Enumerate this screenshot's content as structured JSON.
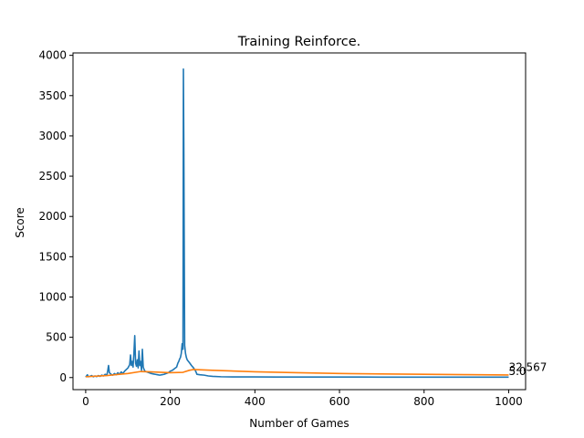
{
  "chart_data": {
    "type": "line",
    "title": "Training Reinforce.",
    "xlabel": "Number of Games",
    "ylabel": "Score",
    "xlim": [
      -30,
      1040
    ],
    "ylim": [
      -150,
      4030
    ],
    "xticks": [
      0,
      200,
      400,
      600,
      800,
      1000
    ],
    "yticks": [
      0,
      500,
      1000,
      1500,
      2000,
      2500,
      3000,
      3500,
      4000
    ],
    "grid": false,
    "series": [
      {
        "color": "#1f77b4",
        "points": [
          [
            0,
            5
          ],
          [
            4,
            35
          ],
          [
            6,
            10
          ],
          [
            10,
            15
          ],
          [
            14,
            25
          ],
          [
            18,
            10
          ],
          [
            22,
            20
          ],
          [
            26,
            12
          ],
          [
            30,
            25
          ],
          [
            34,
            15
          ],
          [
            38,
            30
          ],
          [
            42,
            20
          ],
          [
            46,
            40
          ],
          [
            50,
            30
          ],
          [
            52,
            80
          ],
          [
            54,
            150
          ],
          [
            56,
            60
          ],
          [
            60,
            40
          ],
          [
            64,
            30
          ],
          [
            68,
            50
          ],
          [
            72,
            35
          ],
          [
            76,
            60
          ],
          [
            80,
            40
          ],
          [
            84,
            70
          ],
          [
            88,
            50
          ],
          [
            92,
            80
          ],
          [
            96,
            100
          ],
          [
            100,
            120
          ],
          [
            104,
            160
          ],
          [
            106,
            280
          ],
          [
            108,
            150
          ],
          [
            110,
            200
          ],
          [
            112,
            130
          ],
          [
            114,
            300
          ],
          [
            116,
            520
          ],
          [
            118,
            180
          ],
          [
            120,
            140
          ],
          [
            122,
            220
          ],
          [
            124,
            120
          ],
          [
            126,
            330
          ],
          [
            128,
            150
          ],
          [
            130,
            200
          ],
          [
            132,
            90
          ],
          [
            134,
            350
          ],
          [
            136,
            130
          ],
          [
            138,
            100
          ],
          [
            140,
            80
          ],
          [
            145,
            70
          ],
          [
            150,
            60
          ],
          [
            155,
            50
          ],
          [
            160,
            45
          ],
          [
            165,
            40
          ],
          [
            170,
            35
          ],
          [
            175,
            30
          ],
          [
            180,
            35
          ],
          [
            185,
            40
          ],
          [
            190,
            50
          ],
          [
            195,
            60
          ],
          [
            200,
            80
          ],
          [
            205,
            90
          ],
          [
            210,
            110
          ],
          [
            215,
            130
          ],
          [
            218,
            180
          ],
          [
            220,
            200
          ],
          [
            222,
            230
          ],
          [
            224,
            250
          ],
          [
            226,
            300
          ],
          [
            228,
            420
          ],
          [
            230,
            350
          ],
          [
            231,
            3830
          ],
          [
            232,
            2900
          ],
          [
            234,
            400
          ],
          [
            236,
            300
          ],
          [
            238,
            250
          ],
          [
            240,
            220
          ],
          [
            243,
            200
          ],
          [
            246,
            180
          ],
          [
            250,
            150
          ],
          [
            255,
            120
          ],
          [
            260,
            80
          ],
          [
            263,
            40
          ],
          [
            270,
            35
          ],
          [
            280,
            30
          ],
          [
            290,
            20
          ],
          [
            300,
            15
          ],
          [
            320,
            10
          ],
          [
            350,
            8
          ],
          [
            400,
            8
          ],
          [
            450,
            7
          ],
          [
            500,
            7
          ],
          [
            550,
            6
          ],
          [
            600,
            6
          ],
          [
            650,
            6
          ],
          [
            700,
            5
          ],
          [
            750,
            5
          ],
          [
            800,
            5
          ],
          [
            850,
            5
          ],
          [
            900,
            5
          ],
          [
            950,
            5
          ],
          [
            1000,
            5
          ]
        ]
      },
      {
        "color": "#ff7f0e",
        "points": [
          [
            0,
            10
          ],
          [
            50,
            25
          ],
          [
            100,
            50
          ],
          [
            130,
            75
          ],
          [
            150,
            72
          ],
          [
            200,
            60
          ],
          [
            230,
            65
          ],
          [
            245,
            90
          ],
          [
            255,
            100
          ],
          [
            300,
            90
          ],
          [
            400,
            72
          ],
          [
            500,
            60
          ],
          [
            600,
            50
          ],
          [
            700,
            45
          ],
          [
            800,
            40
          ],
          [
            900,
            36
          ],
          [
            1000,
            32.5
          ]
        ]
      }
    ],
    "annotations": [
      {
        "text": "32.567",
        "x": 1000,
        "y": 80
      },
      {
        "text": "5.0",
        "x": 1000,
        "y": 30
      }
    ]
  }
}
